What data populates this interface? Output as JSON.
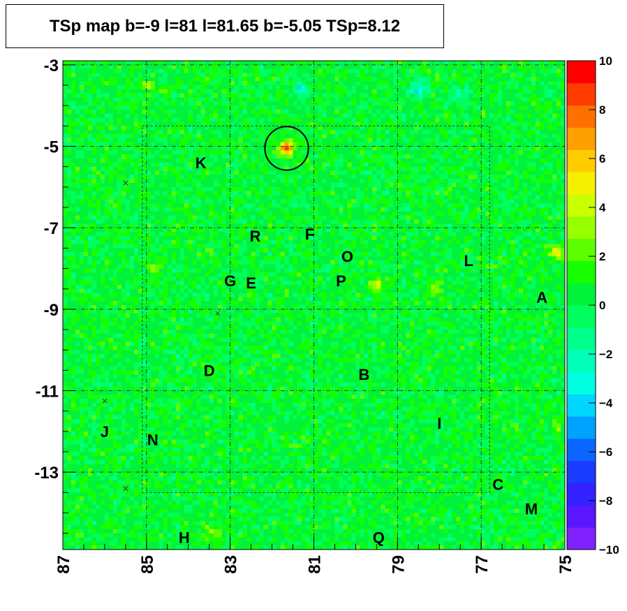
{
  "title": "TSp map b=-9 l=81 l=81.65 b=-5.05 TSp=8.12",
  "chart_data": {
    "type": "heatmap",
    "title": "TSp map b=-9 l=81 l=81.65 b=-5.05 TSp=8.12",
    "xlabel": "",
    "ylabel": "",
    "xlim": [
      87,
      75
    ],
    "ylim": [
      -14.9,
      -2.9
    ],
    "x_ticks": [
      "87",
      "85",
      "83",
      "81",
      "79",
      "77",
      "75"
    ],
    "y_ticks": [
      "-3",
      "-5",
      "-7",
      "-9",
      "-11",
      "-13"
    ],
    "colorbar": {
      "range": [
        -10,
        10
      ],
      "ticks": [
        "10",
        "8",
        "6",
        "4",
        "2",
        "0",
        "−2",
        "−4",
        "−6",
        "−8",
        "−10"
      ],
      "colors": [
        "#7f22ff",
        "#5a16ff",
        "#3321ff",
        "#1a3cff",
        "#0a66ff",
        "#00a2ff",
        "#00d6ff",
        "#00ffe0",
        "#00ffb8",
        "#00ff8c",
        "#00ff5e",
        "#00f23a",
        "#16ff00",
        "#5cff00",
        "#96ff00",
        "#caff00",
        "#f4f000",
        "#ffcc00",
        "#ffa000",
        "#ff7000",
        "#ff3c00",
        "#ff0000"
      ]
    },
    "background_ts": 0.5,
    "hotspots": [
      {
        "l": 81.65,
        "b": -5.05,
        "ts": 8.12
      },
      {
        "l": 75.2,
        "b": -7.6,
        "ts": 5.5
      },
      {
        "l": 79.5,
        "b": -8.4,
        "ts": 4.5
      },
      {
        "l": 78.1,
        "b": -8.5,
        "ts": 4.0
      },
      {
        "l": 84.8,
        "b": -8.0,
        "ts": 3.0
      },
      {
        "l": 85.0,
        "b": -3.5,
        "ts": 3.5
      },
      {
        "l": 75.2,
        "b": -11.8,
        "ts": 2.5
      },
      {
        "l": 83.4,
        "b": -14.5,
        "ts": 2.5
      }
    ],
    "coldspots": [
      {
        "l": 78.5,
        "b": -3.6,
        "ts": -3
      },
      {
        "l": 81.3,
        "b": -3.6,
        "ts": -2.5
      },
      {
        "l": 77.5,
        "b": -3.7,
        "ts": -2
      }
    ],
    "circle": {
      "l": 81.65,
      "b": -5.05,
      "r_deg": 0.52
    },
    "labels": [
      {
        "text": "K",
        "l": 83.7,
        "b": -5.4
      },
      {
        "text": "R",
        "l": 82.4,
        "b": -7.2
      },
      {
        "text": "F",
        "l": 81.1,
        "b": -7.15
      },
      {
        "text": "O",
        "l": 80.2,
        "b": -7.7
      },
      {
        "text": "L",
        "l": 77.3,
        "b": -7.8
      },
      {
        "text": "G",
        "l": 83.0,
        "b": -8.3
      },
      {
        "text": "E",
        "l": 82.5,
        "b": -8.35
      },
      {
        "text": "P",
        "l": 80.35,
        "b": -8.3
      },
      {
        "text": "A",
        "l": 75.55,
        "b": -8.7
      },
      {
        "text": "D",
        "l": 83.5,
        "b": -10.5
      },
      {
        "text": "B",
        "l": 79.8,
        "b": -10.6
      },
      {
        "text": "I",
        "l": 78.0,
        "b": -11.8
      },
      {
        "text": "J",
        "l": 86.0,
        "b": -12.0
      },
      {
        "text": "N",
        "l": 84.85,
        "b": -12.2
      },
      {
        "text": "C",
        "l": 76.6,
        "b": -13.3
      },
      {
        "text": "M",
        "l": 75.8,
        "b": -13.9
      },
      {
        "text": "H",
        "l": 84.1,
        "b": -14.6
      },
      {
        "text": "Q",
        "l": 79.45,
        "b": -14.6
      }
    ],
    "grid": true
  }
}
